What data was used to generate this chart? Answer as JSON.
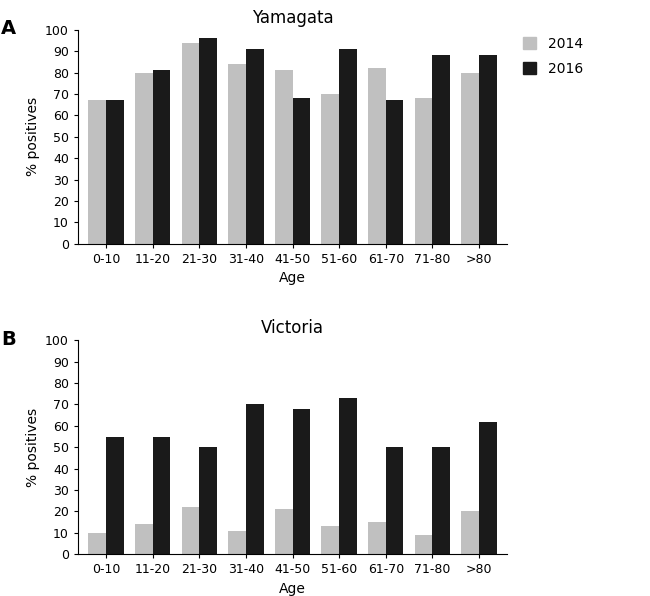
{
  "age_groups": [
    "0-10",
    "11-20",
    "21-30",
    "31-40",
    "41-50",
    "51-60",
    "61-70",
    "71-80",
    ">80"
  ],
  "yamagata_2014": [
    67,
    80,
    94,
    84,
    81,
    70,
    82,
    68,
    80
  ],
  "yamagata_2016": [
    67,
    81,
    96,
    91,
    68,
    91,
    67,
    88,
    88
  ],
  "victoria_2014": [
    10,
    14,
    22,
    11,
    21,
    13,
    15,
    9,
    20
  ],
  "victoria_2016": [
    55,
    55,
    50,
    70,
    68,
    73,
    50,
    50,
    62
  ],
  "color_2014": "#c0c0c0",
  "color_2016": "#1a1a1a",
  "ylabel": "% positives",
  "xlabel": "Age",
  "title_A": "Yamagata",
  "title_B": "Victoria",
  "label_A": "A",
  "label_B": "B",
  "legend_2014": "2014",
  "legend_2016": "2016",
  "ylim": [
    0,
    100
  ],
  "yticks": [
    0,
    10,
    20,
    30,
    40,
    50,
    60,
    70,
    80,
    90,
    100
  ]
}
